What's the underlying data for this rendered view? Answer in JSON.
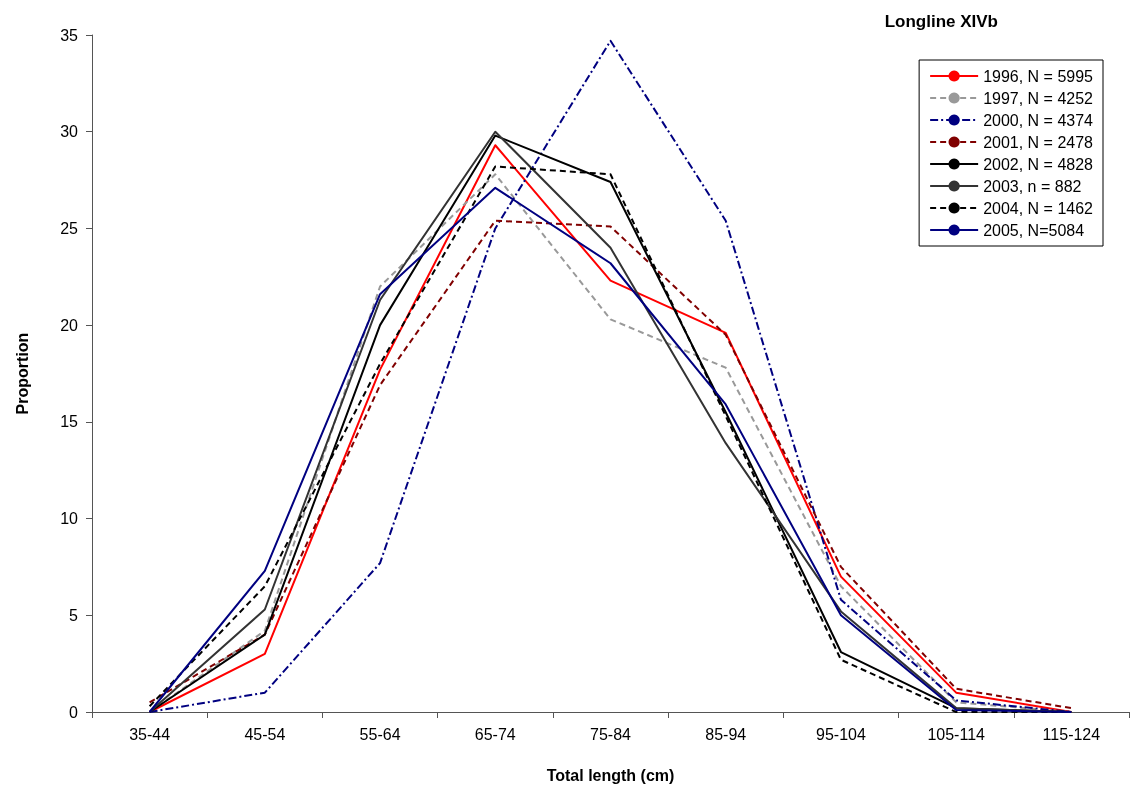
{
  "chart_data": {
    "type": "line",
    "title": "Longline XIVb",
    "xlabel": "Total length (cm)",
    "ylabel": "Proportion",
    "categories": [
      "35-44",
      "45-54",
      "55-64",
      "65-74",
      "75-84",
      "85-94",
      "95-104",
      "105-114",
      "115-124"
    ],
    "ylim": [
      0,
      35
    ],
    "yticks": [
      0,
      5,
      10,
      15,
      20,
      25,
      30,
      35
    ],
    "grid": false,
    "legend": "top right",
    "marker": "none",
    "series": [
      {
        "name": "1996, N = 5995",
        "color": "#ff0000",
        "line_style": "solid",
        "values": [
          0,
          3.0,
          17.7,
          29.3,
          22.3,
          19.6,
          7.0,
          1.0,
          0
        ]
      },
      {
        "name": "1997, N = 4252",
        "color": "#999999",
        "line_style": "dashed",
        "values": [
          0,
          4.2,
          22.0,
          27.8,
          20.3,
          17.8,
          6.5,
          0.5,
          0
        ]
      },
      {
        "name": "2000, N = 4374",
        "color": "#000080",
        "line_style": "dashdot",
        "values": [
          0,
          1.0,
          7.7,
          25.0,
          34.7,
          25.4,
          5.8,
          0.6,
          0
        ]
      },
      {
        "name": "2001, N = 2478",
        "color": "#800000",
        "line_style": "dashed",
        "values": [
          0.5,
          4.0,
          16.9,
          25.4,
          25.1,
          19.5,
          7.5,
          1.2,
          0.2
        ]
      },
      {
        "name": "2002, N = 4828",
        "color": "#000000",
        "line_style": "solid",
        "values": [
          0,
          4.0,
          20.0,
          29.8,
          27.4,
          15.5,
          3.1,
          0.2,
          0
        ]
      },
      {
        "name": "2003, n = 882",
        "color": "#333333",
        "line_style": "solid",
        "values": [
          0,
          5.3,
          21.3,
          30.0,
          24.0,
          13.9,
          5.2,
          0.2,
          0
        ]
      },
      {
        "name": "2004, N = 1462",
        "color": "#000000",
        "line_style": "dashed",
        "values": [
          0.3,
          6.5,
          18.0,
          28.2,
          27.8,
          15.3,
          2.7,
          0,
          0
        ]
      },
      {
        "name": "2005, N=5084",
        "color": "#000080",
        "line_style": "solid",
        "values": [
          0,
          7.3,
          21.6,
          27.1,
          23.2,
          15.9,
          5.0,
          0.1,
          0
        ]
      }
    ]
  }
}
